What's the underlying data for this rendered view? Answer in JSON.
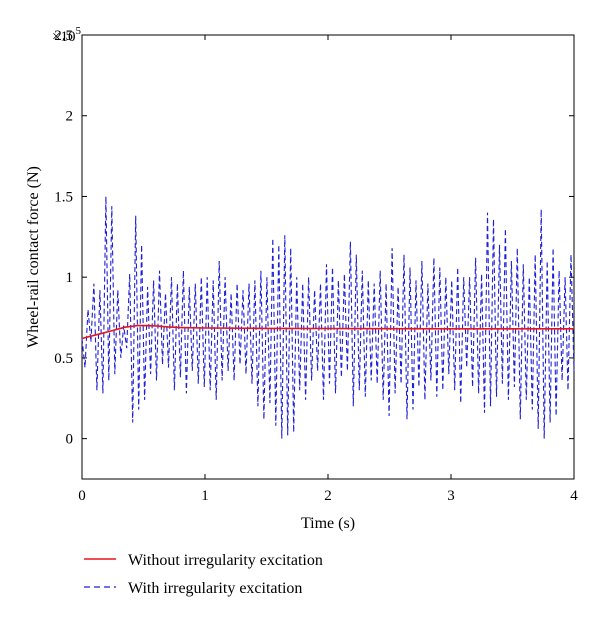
{
  "chart_data": {
    "type": "line",
    "title": "",
    "xlabel": "Time (s)",
    "ylabel": "Wheel-rail contact force (N)",
    "y_exponent_label": "×10",
    "y_exponent_power": "5",
    "xlim": [
      0,
      4
    ],
    "ylim": [
      -0.25,
      2.5
    ],
    "grid": false,
    "legend_position": "bottom-left",
    "x_ticks": [
      0,
      1,
      2,
      3,
      4
    ],
    "x_tick_labels": [
      "0",
      "1",
      "2",
      "3",
      "4"
    ],
    "y_ticks": [
      0,
      0.5,
      1,
      1.5,
      2,
      2.5
    ],
    "y_tick_labels": [
      "0",
      "0.5",
      "1",
      "1.5",
      "2",
      "2.5"
    ],
    "series": [
      {
        "name": "Without irregularity excitation",
        "color": "#e8141c",
        "style": "solid",
        "x": [
          0,
          0.05,
          0.1,
          0.15,
          0.2,
          0.25,
          0.3,
          0.35,
          0.4,
          0.45,
          0.5,
          0.6,
          0.7,
          0.8,
          1.0,
          1.5,
          2.0,
          2.5,
          3.0,
          3.5,
          4.0
        ],
        "values": [
          0.62,
          0.63,
          0.64,
          0.65,
          0.66,
          0.67,
          0.68,
          0.69,
          0.695,
          0.7,
          0.7,
          0.698,
          0.692,
          0.688,
          0.685,
          0.683,
          0.682,
          0.681,
          0.68,
          0.68,
          0.68
        ]
      },
      {
        "name": "With irregularity excitation",
        "color": "#1f1fd6",
        "style": "dashed",
        "x_start": 0,
        "x_end": 4,
        "values": [
          0.62,
          0.44,
          0.8,
          0.6,
          0.96,
          0.3,
          0.92,
          0.28,
          1.5,
          0.36,
          1.44,
          0.4,
          0.92,
          0.5,
          0.7,
          0.56,
          1.02,
          0.1,
          1.38,
          0.18,
          1.2,
          0.24,
          0.94,
          0.4,
          0.98,
          0.36,
          1.04,
          0.46,
          0.9,
          0.44,
          1.0,
          0.3,
          0.96,
          0.38,
          1.04,
          0.28,
          0.94,
          0.42,
          0.96,
          0.34,
          1.0,
          0.32,
          1.0,
          0.3,
          0.98,
          0.24,
          1.1,
          0.36,
          1.0,
          0.42,
          0.9,
          0.36,
          0.96,
          0.46,
          0.92,
          0.4,
          0.96,
          0.34,
          0.98,
          0.2,
          1.04,
          0.12,
          1.0,
          0.22,
          1.24,
          0.08,
          1.2,
          0.0,
          1.26,
          0.02,
          1.18,
          0.04,
          1.0,
          0.3,
          0.96,
          0.24,
          1.0,
          0.36,
          0.92,
          0.42,
          0.96,
          0.24,
          1.08,
          0.34,
          1.06,
          0.28,
          0.98,
          0.38,
          1.02,
          0.42,
          1.22,
          0.2,
          1.14,
          0.3,
          1.04,
          0.26,
          0.98,
          0.36,
          0.96,
          0.34,
          1.04,
          0.24,
          0.96,
          0.14,
          1.18,
          0.28,
          0.94,
          0.34,
          1.14,
          0.12,
          1.06,
          0.18,
          0.98,
          0.32,
          1.1,
          0.24,
          0.96,
          0.36,
          1.12,
          0.26,
          1.06,
          0.3,
          1.0,
          0.4,
          0.98,
          0.3,
          1.06,
          0.22,
          1.0,
          0.44,
          1.0,
          0.32,
          1.12,
          0.28,
          1.02,
          0.16,
          1.4,
          0.2,
          1.36,
          0.26,
          1.2,
          0.34,
          1.3,
          0.24,
          1.1,
          0.32,
          1.18,
          0.12,
          1.08,
          0.24,
          1.0,
          0.18,
          1.14,
          0.06,
          1.42,
          0.0,
          1.1,
          0.1,
          1.18,
          0.14,
          1.04,
          0.36,
          1.0,
          0.3,
          1.14,
          0.42
        ]
      }
    ]
  }
}
